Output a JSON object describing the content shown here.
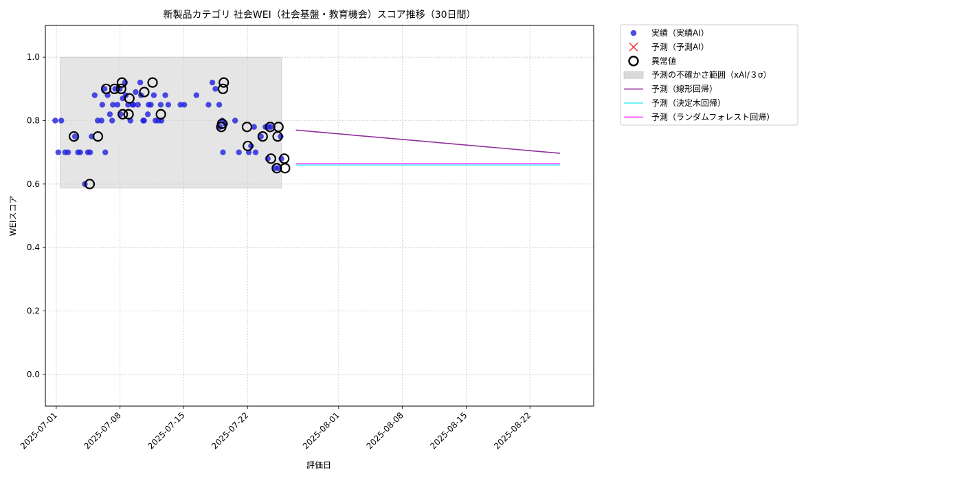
{
  "chart_data": {
    "type": "scatter",
    "title": "新製品カテゴリ 社会WEI（社会基盤・教育機会）スコア推移（30日間）",
    "xlabel": "評価日",
    "ylabel": "WEIスコア",
    "x_range": [
      "2025-06-29",
      "2025-08-29"
    ],
    "ylim": [
      -0.1,
      1.1
    ],
    "x_ticks": [
      "2025-07-01",
      "2025-07-08",
      "2025-07-15",
      "2025-07-22",
      "2025-08-01",
      "2025-08-08",
      "2025-08-15",
      "2025-08-22"
    ],
    "y_ticks": [
      "0.0",
      "0.2",
      "0.4",
      "0.6",
      "0.8",
      "1.0"
    ],
    "grid": true,
    "legend_position": "outside-top-right",
    "legend": [
      {
        "label": "実績（実績AI）",
        "kind": "dot",
        "color": "#1f1fe0"
      },
      {
        "label": "予測（予測AI）",
        "kind": "x",
        "color": "#ff4040"
      },
      {
        "label": "異常値",
        "kind": "ring",
        "color": "#000000"
      },
      {
        "label": "予測の不確かさ範囲（xAI/３σ）",
        "kind": "band",
        "color": "#d9d9d9"
      },
      {
        "label": "予測（線形回帰）",
        "kind": "line",
        "color": "#912e9e"
      },
      {
        "label": "予測（決定木回帰）",
        "kind": "line",
        "color": "#40f0f0"
      },
      {
        "label": "予測（ランダムフォレスト回帰）",
        "kind": "line",
        "color": "#ff40ff"
      }
    ],
    "band": {
      "x": [
        "2025-07-01",
        "2025-07-26"
      ],
      "y": [
        0.587,
        1.0
      ]
    },
    "actual": {
      "x": [
        "2025-07-01",
        "2025-07-01",
        "2025-07-01",
        "2025-07-02",
        "2025-07-02",
        "2025-07-03",
        "2025-07-03",
        "2025-07-03",
        "2025-07-04",
        "2025-07-04",
        "2025-07-04",
        "2025-07-05",
        "2025-07-05",
        "2025-07-05",
        "2025-07-06",
        "2025-07-06",
        "2025-07-06",
        "2025-07-06",
        "2025-07-06",
        "2025-07-07",
        "2025-07-07",
        "2025-07-07",
        "2025-07-07",
        "2025-07-07",
        "2025-07-08",
        "2025-07-08",
        "2025-07-08",
        "2025-07-08",
        "2025-07-08",
        "2025-07-09",
        "2025-07-09",
        "2025-07-09",
        "2025-07-09",
        "2025-07-09",
        "2025-07-10",
        "2025-07-10",
        "2025-07-10",
        "2025-07-10",
        "2025-07-10",
        "2025-07-11",
        "2025-07-11",
        "2025-07-11",
        "2025-07-11",
        "2025-07-12",
        "2025-07-12",
        "2025-07-12",
        "2025-07-12",
        "2025-07-13",
        "2025-07-13",
        "2025-07-14",
        "2025-07-15",
        "2025-07-16",
        "2025-07-17",
        "2025-07-18",
        "2025-07-18",
        "2025-07-19",
        "2025-07-19",
        "2025-07-19",
        "2025-07-19",
        "2025-07-19",
        "2025-07-20",
        "2025-07-21",
        "2025-07-22",
        "2025-07-22",
        "2025-07-22",
        "2025-07-23",
        "2025-07-23",
        "2025-07-24",
        "2025-07-24",
        "2025-07-24",
        "2025-07-24",
        "2025-07-25",
        "2025-07-25",
        "2025-07-25",
        "2025-07-25"
      ],
      "y": [
        0.8,
        0.7,
        0.8,
        0.7,
        0.7,
        0.7,
        0.75,
        0.7,
        0.7,
        0.6,
        0.7,
        0.75,
        0.88,
        0.8,
        0.8,
        0.9,
        0.88,
        0.85,
        0.7,
        0.85,
        0.8,
        0.9,
        0.82,
        0.85,
        0.92,
        0.9,
        0.87,
        0.88,
        0.82,
        0.85,
        0.89,
        0.8,
        0.85,
        0.85,
        0.92,
        0.8,
        0.85,
        0.88,
        0.8,
        0.82,
        0.85,
        0.88,
        0.85,
        0.85,
        0.8,
        0.8,
        0.8,
        0.88,
        0.85,
        0.85,
        0.85,
        0.88,
        0.85,
        0.92,
        0.9,
        0.85,
        0.8,
        0.79,
        0.78,
        0.7,
        0.8,
        0.7,
        0.72,
        0.78,
        0.7,
        0.75,
        0.7,
        0.68,
        0.78,
        0.78,
        0.78,
        0.75,
        0.65,
        0.65,
        0.68
      ]
    },
    "anomalies": {
      "x": [
        "2025-07-03",
        "2025-07-04",
        "2025-07-05",
        "2025-07-06",
        "2025-07-07",
        "2025-07-08",
        "2025-07-08",
        "2025-07-08",
        "2025-07-09",
        "2025-07-09",
        "2025-07-10",
        "2025-07-11",
        "2025-07-12",
        "2025-07-19",
        "2025-07-19",
        "2025-07-19",
        "2025-07-19",
        "2025-07-22",
        "2025-07-22",
        "2025-07-23",
        "2025-07-24",
        "2025-07-24",
        "2025-07-25",
        "2025-07-25",
        "2025-07-25",
        "2025-07-26",
        "2025-07-26"
      ],
      "y": [
        0.75,
        0.6,
        0.75,
        0.9,
        0.9,
        0.82,
        0.92,
        0.9,
        0.87,
        0.82,
        0.89,
        0.92,
        0.82,
        0.92,
        0.9,
        0.79,
        0.78,
        0.72,
        0.78,
        0.75,
        0.68,
        0.78,
        0.78,
        0.75,
        0.65,
        0.65,
        0.68
      ]
    },
    "forecast_lines": [
      {
        "name": "予測（線形回帰）",
        "color": "#912e9e",
        "x": [
          "2025-07-27",
          "2025-08-25"
        ],
        "y": [
          0.77,
          0.697
        ]
      },
      {
        "name": "予測（決定木回帰）",
        "color": "#40f0f0",
        "x": [
          "2025-07-27",
          "2025-08-25"
        ],
        "y": [
          0.66,
          0.66
        ]
      },
      {
        "name": "予測（ランダムフォレスト回帰）",
        "color": "#ff40ff",
        "x": [
          "2025-07-27",
          "2025-08-25"
        ],
        "y": [
          0.664,
          0.664
        ]
      }
    ]
  }
}
